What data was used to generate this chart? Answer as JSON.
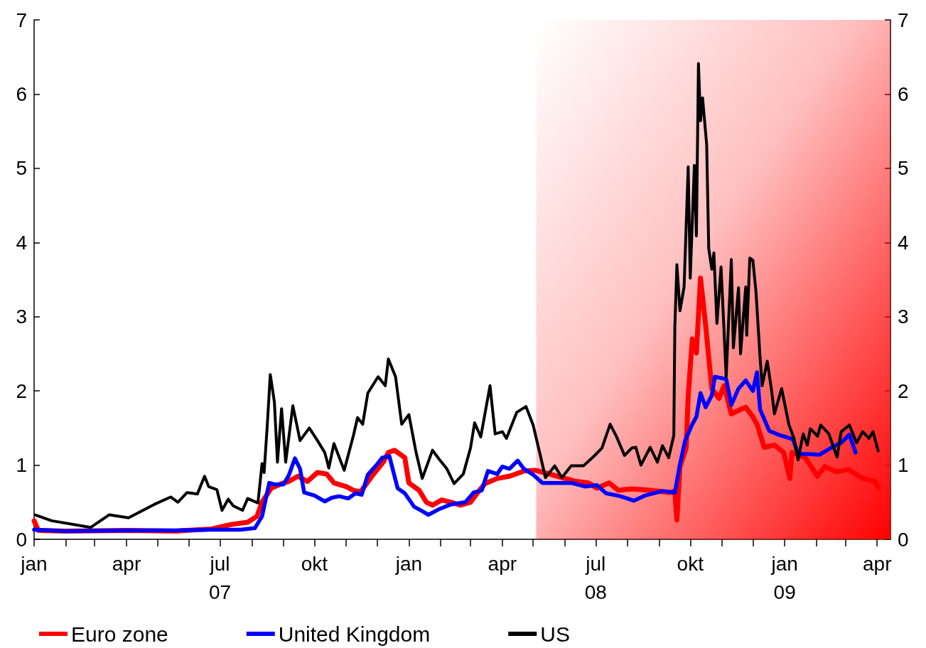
{
  "chart_data": {
    "type": "line",
    "xlim": [
      "2007-01-01",
      "2009-04-14"
    ],
    "xticks": [
      {
        "value": "2007-01-01",
        "label": "jan"
      },
      {
        "value": "2007-02-01",
        "label": null
      },
      {
        "value": "2007-03-01",
        "label": null
      },
      {
        "value": "2007-04-01",
        "label": "apr"
      },
      {
        "value": "2007-05-01",
        "label": null
      },
      {
        "value": "2007-06-01",
        "label": null
      },
      {
        "value": "2007-07-01",
        "label": "jul\n07"
      },
      {
        "value": "2007-08-01",
        "label": null
      },
      {
        "value": "2007-09-01",
        "label": null
      },
      {
        "value": "2007-10-01",
        "label": "okt"
      },
      {
        "value": "2007-11-01",
        "label": null
      },
      {
        "value": "2007-12-01",
        "label": null
      },
      {
        "value": "2008-01-01",
        "label": "jan"
      },
      {
        "value": "2008-02-01",
        "label": null
      },
      {
        "value": "2008-03-01",
        "label": null
      },
      {
        "value": "2008-04-01",
        "label": "apr"
      },
      {
        "value": "2008-05-01",
        "label": null
      },
      {
        "value": "2008-06-01",
        "label": null
      },
      {
        "value": "2008-07-01",
        "label": "jul\n08"
      },
      {
        "value": "2008-08-01",
        "label": null
      },
      {
        "value": "2008-09-01",
        "label": null
      },
      {
        "value": "2008-10-01",
        "label": "okt"
      },
      {
        "value": "2008-11-01",
        "label": null
      },
      {
        "value": "2008-12-01",
        "label": null
      },
      {
        "value": "2009-01-01",
        "label": "jan\n09"
      },
      {
        "value": "2009-02-01",
        "label": null
      },
      {
        "value": "2009-03-01",
        "label": null
      },
      {
        "value": "2009-04-01",
        "label": "apr"
      }
    ],
    "ylim": [
      0,
      7
    ],
    "yticks": [
      0,
      1,
      2,
      3,
      4,
      5,
      6,
      7
    ],
    "y2lim": [
      0,
      7
    ],
    "y2ticks": [
      0,
      1,
      2,
      3,
      4,
      5,
      6,
      7
    ],
    "grid": false,
    "legend": "bottom",
    "marker": "none",
    "line_style": "solid",
    "bands": [
      {
        "axis": "x",
        "from": "2008-05-04",
        "to": "2009-04-14",
        "color": "#ff0000"
      }
    ],
    "series": [
      {
        "name": "Euro zone",
        "color": "#ff0000",
        "x": [
          "2007-01-01",
          "2007-01-05",
          "2007-02-01",
          "2007-04-01",
          "2007-05-19",
          "2007-06-23",
          "2007-07-12",
          "2007-07-28",
          "2007-08-06",
          "2007-08-11",
          "2007-08-20",
          "2007-08-30",
          "2007-09-06",
          "2007-09-15",
          "2007-09-24",
          "2007-10-04",
          "2007-10-13",
          "2007-10-20",
          "2007-11-01",
          "2007-11-08",
          "2007-11-15",
          "2007-11-26",
          "2007-12-07",
          "2007-12-12",
          "2007-12-18",
          "2007-12-28",
          "2008-01-01",
          "2008-01-11",
          "2008-01-18",
          "2008-01-24",
          "2008-02-02",
          "2008-02-11",
          "2008-02-20",
          "2008-03-01",
          "2008-03-08",
          "2008-03-15",
          "2008-03-27",
          "2008-04-08",
          "2008-04-22",
          "2008-05-03",
          "2008-05-17",
          "2008-06-01",
          "2008-06-12",
          "2008-06-24",
          "2008-07-02",
          "2008-07-14",
          "2008-07-23",
          "2008-08-05",
          "2008-08-23",
          "2008-09-11",
          "2008-09-16",
          "2008-09-18",
          "2008-09-21",
          "2008-09-27",
          "2008-09-29",
          "2008-10-03",
          "2008-10-07",
          "2008-10-11",
          "2008-10-16",
          "2008-10-22",
          "2008-10-29",
          "2008-11-03",
          "2008-11-10",
          "2008-11-19",
          "2008-11-24",
          "2008-12-01",
          "2008-12-05",
          "2008-12-12",
          "2008-12-22",
          "2008-12-31",
          "2009-01-06",
          "2009-01-08",
          "2009-01-21",
          "2009-02-02",
          "2009-02-09",
          "2009-02-20",
          "2009-03-04",
          "2009-03-18",
          "2009-03-30",
          "2009-04-02"
        ],
        "values": [
          0.25,
          0.12,
          0.11,
          0.12,
          0.11,
          0.14,
          0.2,
          0.23,
          0.31,
          0.5,
          0.69,
          0.75,
          0.78,
          0.85,
          0.78,
          0.9,
          0.88,
          0.76,
          0.71,
          0.66,
          0.64,
          0.85,
          1.04,
          1.17,
          1.2,
          1.1,
          0.76,
          0.66,
          0.5,
          0.46,
          0.53,
          0.5,
          0.46,
          0.5,
          0.63,
          0.75,
          0.82,
          0.85,
          0.92,
          0.93,
          0.88,
          0.82,
          0.78,
          0.76,
          0.69,
          0.76,
          0.66,
          0.68,
          0.66,
          0.63,
          0.65,
          0.26,
          0.98,
          1.23,
          1.93,
          2.7,
          2.51,
          3.52,
          2.88,
          2.03,
          1.9,
          2.07,
          1.69,
          1.75,
          1.78,
          1.65,
          1.55,
          1.24,
          1.27,
          1.17,
          0.82,
          1.17,
          1.1,
          0.85,
          0.98,
          0.91,
          0.94,
          0.82,
          0.78,
          0.7
        ]
      },
      {
        "name": "United Kingdom",
        "color": "#0000ff",
        "x": [
          "2007-01-01",
          "2007-02-01",
          "2007-04-01",
          "2007-05-19",
          "2007-06-23",
          "2007-07-21",
          "2007-08-04",
          "2007-08-11",
          "2007-08-18",
          "2007-08-23",
          "2007-09-01",
          "2007-09-06",
          "2007-09-12",
          "2007-09-17",
          "2007-09-21",
          "2007-10-01",
          "2007-10-11",
          "2007-10-18",
          "2007-10-25",
          "2007-11-03",
          "2007-11-10",
          "2007-11-16",
          "2007-11-22",
          "2007-12-01",
          "2007-12-06",
          "2007-12-13",
          "2007-12-21",
          "2007-12-28",
          "2008-01-06",
          "2008-01-14",
          "2008-01-20",
          "2008-01-31",
          "2008-02-11",
          "2008-02-25",
          "2008-03-04",
          "2008-03-12",
          "2008-03-18",
          "2008-03-27",
          "2008-04-01",
          "2008-04-08",
          "2008-04-16",
          "2008-04-22",
          "2008-05-01",
          "2008-05-10",
          "2008-05-24",
          "2008-06-07",
          "2008-06-21",
          "2008-07-02",
          "2008-07-11",
          "2008-07-25",
          "2008-08-07",
          "2008-08-18",
          "2008-09-04",
          "2008-09-16",
          "2008-09-21",
          "2008-09-26",
          "2008-10-03",
          "2008-10-07",
          "2008-10-11",
          "2008-10-16",
          "2008-10-22",
          "2008-10-25",
          "2008-11-05",
          "2008-11-10",
          "2008-11-17",
          "2008-11-24",
          "2008-12-01",
          "2008-12-05",
          "2008-12-08",
          "2008-12-17",
          "2008-12-26",
          "2009-01-09",
          "2009-01-14",
          "2009-01-23",
          "2009-02-04",
          "2009-02-16",
          "2009-02-25",
          "2009-03-05",
          "2009-03-11"
        ],
        "values": [
          0.13,
          0.11,
          0.12,
          0.12,
          0.13,
          0.13,
          0.15,
          0.31,
          0.76,
          0.74,
          0.74,
          0.86,
          1.09,
          0.95,
          0.63,
          0.59,
          0.51,
          0.56,
          0.58,
          0.55,
          0.62,
          0.6,
          0.87,
          1.01,
          1.1,
          1.12,
          0.69,
          0.62,
          0.44,
          0.38,
          0.33,
          0.41,
          0.47,
          0.5,
          0.63,
          0.66,
          0.92,
          0.88,
          0.98,
          0.95,
          1.06,
          0.95,
          0.87,
          0.76,
          0.76,
          0.76,
          0.71,
          0.73,
          0.62,
          0.58,
          0.52,
          0.59,
          0.65,
          0.63,
          1.01,
          1.33,
          1.55,
          1.65,
          1.97,
          1.78,
          1.94,
          2.19,
          2.16,
          1.81,
          2.03,
          2.14,
          2.0,
          2.25,
          1.75,
          1.46,
          1.41,
          1.35,
          1.15,
          1.15,
          1.14,
          1.24,
          1.3,
          1.41,
          1.17
        ]
      },
      {
        "name": "US",
        "color": "#000000",
        "x": [
          "2007-01-02",
          "2007-01-18",
          "2007-02-25",
          "2007-03-15",
          "2007-04-03",
          "2007-04-28",
          "2007-05-14",
          "2007-05-21",
          "2007-05-30",
          "2007-06-09",
          "2007-06-16",
          "2007-06-20",
          "2007-06-28",
          "2007-07-03",
          "2007-07-09",
          "2007-07-14",
          "2007-07-23",
          "2007-07-28",
          "2007-08-07",
          "2007-08-11",
          "2007-08-13",
          "2007-08-16",
          "2007-08-19",
          "2007-08-23",
          "2007-08-26",
          "2007-08-30",
          "2007-09-03",
          "2007-09-10",
          "2007-09-17",
          "2007-09-26",
          "2007-10-04",
          "2007-10-11",
          "2007-10-13",
          "2007-10-15",
          "2007-10-20",
          "2007-10-30",
          "2007-11-08",
          "2007-11-12",
          "2007-11-17",
          "2007-11-22",
          "2007-12-02",
          "2007-12-09",
          "2007-12-12",
          "2007-12-19",
          "2007-12-25",
          "2008-01-01",
          "2008-01-08",
          "2008-01-14",
          "2008-01-24",
          "2008-01-31",
          "2008-02-07",
          "2008-02-14",
          "2008-02-23",
          "2008-03-01",
          "2008-03-05",
          "2008-03-11",
          "2008-03-20",
          "2008-03-25",
          "2008-04-01",
          "2008-04-05",
          "2008-04-15",
          "2008-04-24",
          "2008-05-01",
          "2008-05-08",
          "2008-05-13",
          "2008-05-22",
          "2008-05-29",
          "2008-06-07",
          "2008-06-19",
          "2008-06-30",
          "2008-07-07",
          "2008-07-15",
          "2008-07-21",
          "2008-07-29",
          "2008-08-05",
          "2008-08-09",
          "2008-08-14",
          "2008-08-23",
          "2008-08-30",
          "2008-09-04",
          "2008-09-10",
          "2008-09-15",
          "2008-09-16",
          "2008-09-18",
          "2008-09-21",
          "2008-09-25",
          "2008-09-29",
          "2008-10-01",
          "2008-10-05",
          "2008-10-07",
          "2008-10-09",
          "2008-10-11",
          "2008-10-13",
          "2008-10-17",
          "2008-10-19",
          "2008-10-22",
          "2008-10-24",
          "2008-10-27",
          "2008-10-31",
          "2008-11-05",
          "2008-11-10",
          "2008-11-12",
          "2008-11-17",
          "2008-11-19",
          "2008-11-24",
          "2008-11-25",
          "2008-11-28",
          "2008-12-01",
          "2008-12-04",
          "2008-12-08",
          "2008-12-10",
          "2008-12-15",
          "2008-12-19",
          "2008-12-22",
          "2008-12-29",
          "2009-01-05",
          "2009-01-10",
          "2009-01-14",
          "2009-01-19",
          "2009-01-23",
          "2009-01-26",
          "2009-02-02",
          "2009-02-05",
          "2009-02-13",
          "2009-02-21",
          "2009-02-25",
          "2009-03-05",
          "2009-03-12",
          "2009-03-18",
          "2009-03-24",
          "2009-03-28",
          "2009-04-02"
        ],
        "values": [
          0.33,
          0.25,
          0.16,
          0.33,
          0.29,
          0.47,
          0.57,
          0.5,
          0.63,
          0.61,
          0.85,
          0.71,
          0.67,
          0.39,
          0.54,
          0.45,
          0.39,
          0.55,
          0.49,
          1.02,
          0.9,
          1.52,
          2.22,
          1.85,
          1.04,
          1.76,
          1.04,
          1.8,
          1.33,
          1.5,
          1.33,
          1.17,
          1.07,
          0.96,
          1.29,
          0.93,
          1.4,
          1.64,
          1.55,
          1.97,
          2.19,
          2.07,
          2.43,
          2.19,
          1.55,
          1.68,
          1.17,
          0.82,
          1.2,
          1.07,
          0.95,
          0.75,
          0.88,
          1.23,
          1.57,
          1.38,
          2.07,
          1.42,
          1.45,
          1.36,
          1.71,
          1.79,
          1.54,
          1.13,
          0.83,
          0.99,
          0.83,
          0.99,
          0.99,
          1.13,
          1.23,
          1.55,
          1.39,
          1.13,
          1.23,
          1.24,
          1.0,
          1.24,
          1.04,
          1.26,
          1.1,
          1.4,
          2.86,
          3.7,
          3.08,
          3.4,
          5.02,
          3.52,
          5.04,
          4.09,
          6.41,
          5.64,
          5.95,
          5.32,
          3.92,
          3.64,
          3.86,
          2.91,
          3.67,
          2.19,
          3.77,
          2.58,
          3.39,
          2.5,
          3.4,
          2.75,
          3.79,
          3.76,
          3.34,
          2.45,
          2.07,
          2.4,
          2.03,
          1.69,
          2.03,
          1.55,
          1.36,
          1.07,
          1.42,
          1.27,
          1.49,
          1.39,
          1.54,
          1.42,
          1.11,
          1.45,
          1.54,
          1.3,
          1.45,
          1.36,
          1.45,
          1.19
        ]
      }
    ]
  }
}
